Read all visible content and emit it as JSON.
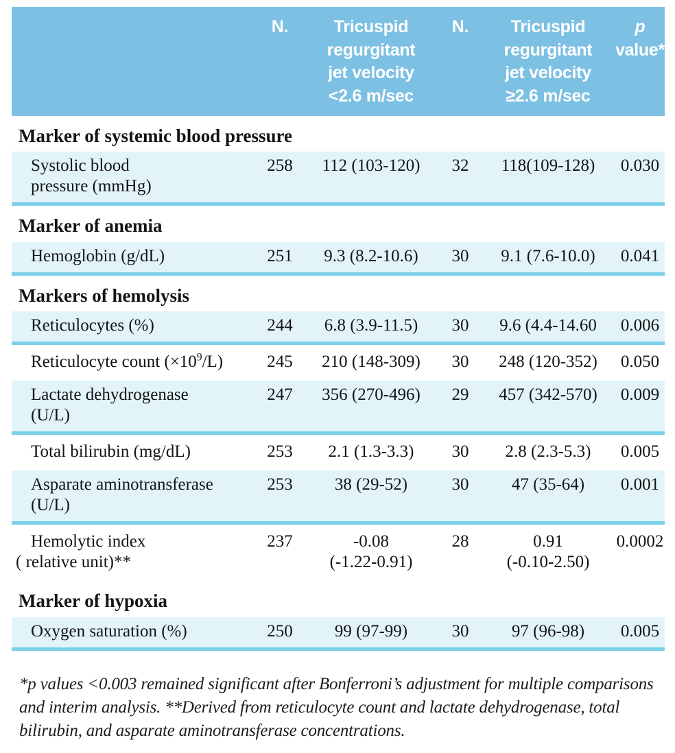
{
  "header": {
    "empty": "",
    "n1": "N.",
    "group1": "Tricuspid\nregurgitant\njet velocity\n<2.6 m/sec",
    "n2": "N.",
    "group2": "Tricuspid\nregurgitant\njet velocity\n≥2.6 m/sec",
    "p_line1": "p",
    "p_line2": "value*"
  },
  "sections": [
    {
      "title": "Marker of systemic blood pressure",
      "rows": [
        {
          "label": "Systolic blood\npressure (mmHg)",
          "n1": "258",
          "v1": "112 (103-120)",
          "n2": "32",
          "v2": "118(109-128)",
          "p": "0.030",
          "shaded": true,
          "hang": false
        }
      ]
    },
    {
      "title": "Marker of anemia",
      "rows": [
        {
          "label": "Hemoglobin (g/dL)",
          "n1": "251",
          "v1": "9.3 (8.2-10.6)",
          "n2": "30",
          "v2": "9.1 (7.6-10.0)",
          "p": "0.041",
          "shaded": true,
          "hang": false
        }
      ]
    },
    {
      "title": "Markers of hemolysis",
      "rows": [
        {
          "label": "Reticulocytes (%)",
          "n1": "244",
          "v1": "6.8 (3.9-11.5)",
          "n2": "30",
          "v2": "9.6 (4.4-14.60",
          "p": "0.006",
          "shaded": true,
          "hang": false
        },
        {
          "label": "Reticulocyte count (×10⁹/L)",
          "n1": "245",
          "v1": "210 (148-309)",
          "n2": "30",
          "v2": "248 (120-352)",
          "p": "0.050",
          "shaded": false,
          "hang": false
        },
        {
          "label": "Lactate dehydrogenase\n(U/L)",
          "n1": "247",
          "v1": "356 (270-496)",
          "n2": "29",
          "v2": "457 (342-570)",
          "p": "0.009",
          "shaded": true,
          "hang": false
        },
        {
          "label": "Total bilirubin (mg/dL)",
          "n1": "253",
          "v1": "2.1 (1.3-3.3)",
          "n2": "30",
          "v2": "2.8 (2.3-5.3)",
          "p": "0.005",
          "shaded": false,
          "hang": false
        },
        {
          "label": "Asparate aminotransferase\n(U/L)",
          "n1": "253",
          "v1": "38 (29-52)",
          "n2": "30",
          "v2": "47 (35-64)",
          "p": "0.001",
          "shaded": true,
          "hang": false
        },
        {
          "label": "Hemolytic index\n( relative unit)**",
          "n1": "237",
          "v1": "-0.08\n(-1.22-0.91)",
          "n2": "28",
          "v2": "0.91\n(-0.10-2.50)",
          "p": "0.0002",
          "shaded": false,
          "hang": true
        }
      ]
    },
    {
      "title": "Marker of hypoxia",
      "rows": [
        {
          "label": "Oxygen saturation (%)",
          "n1": "250",
          "v1": "99 (97-99)",
          "n2": "30",
          "v2": "97 (96-98)",
          "p": "0.005",
          "shaded": true,
          "hang": false
        }
      ]
    }
  ],
  "footnote": "*p values <0.003 remained significant after Bonferroni’s adjustment for multiple comparisons and interim analysis. **Derived from reticulocyte count and lactate dehydrogenase, total bilirubin, and asparate aminotransferase concentrations.",
  "colors": {
    "header_bg": "#7cc0e3",
    "shaded_row_bg": "#e2f4fa",
    "separator_line": "#7bd0e8",
    "header_text": "#ffffff",
    "body_text": "#141414"
  }
}
